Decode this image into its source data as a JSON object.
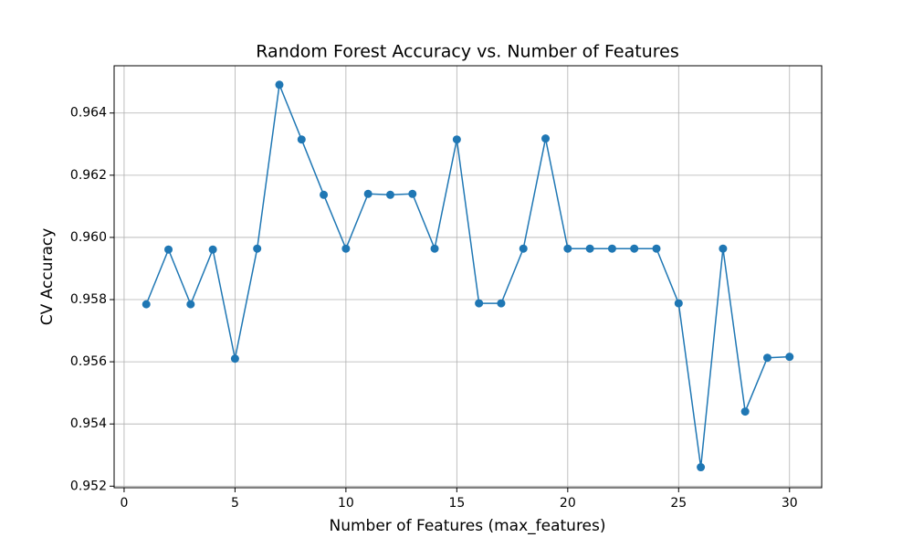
{
  "chart_data": {
    "type": "line",
    "title": "Random Forest Accuracy vs. Number of Features",
    "x_label": "Number of Features (max_features)",
    "y_label": "CV Accuracy",
    "x": [
      1,
      2,
      3,
      4,
      5,
      6,
      7,
      8,
      9,
      10,
      11,
      12,
      13,
      14,
      15,
      16,
      17,
      18,
      19,
      20,
      21,
      22,
      23,
      24,
      25,
      26,
      27,
      28,
      29,
      30
    ],
    "series": [
      {
        "color": "#1f77b4",
        "values": [
          0.95785,
          0.95961,
          0.95785,
          0.95961,
          0.9561,
          0.95964,
          0.96491,
          0.96315,
          0.96137,
          0.95964,
          0.9614,
          0.96137,
          0.9614,
          0.95964,
          0.96315,
          0.95788,
          0.95788,
          0.95964,
          0.96318,
          0.95964,
          0.95964,
          0.95964,
          0.95964,
          0.95964,
          0.95788,
          0.95261,
          0.95964,
          0.9544,
          0.95613,
          0.95616
        ]
      }
    ],
    "xlim": [
      -0.45,
      31.45
    ],
    "ylim": [
      0.95195,
      0.96552
    ],
    "xticks": [
      0,
      5,
      10,
      15,
      20,
      25,
      30
    ],
    "yticks": [
      0.952,
      0.954,
      0.956,
      0.958,
      {
        "value": 0.96,
        "label": "0.960"
      },
      0.962,
      0.964
    ],
    "grid": true
  }
}
